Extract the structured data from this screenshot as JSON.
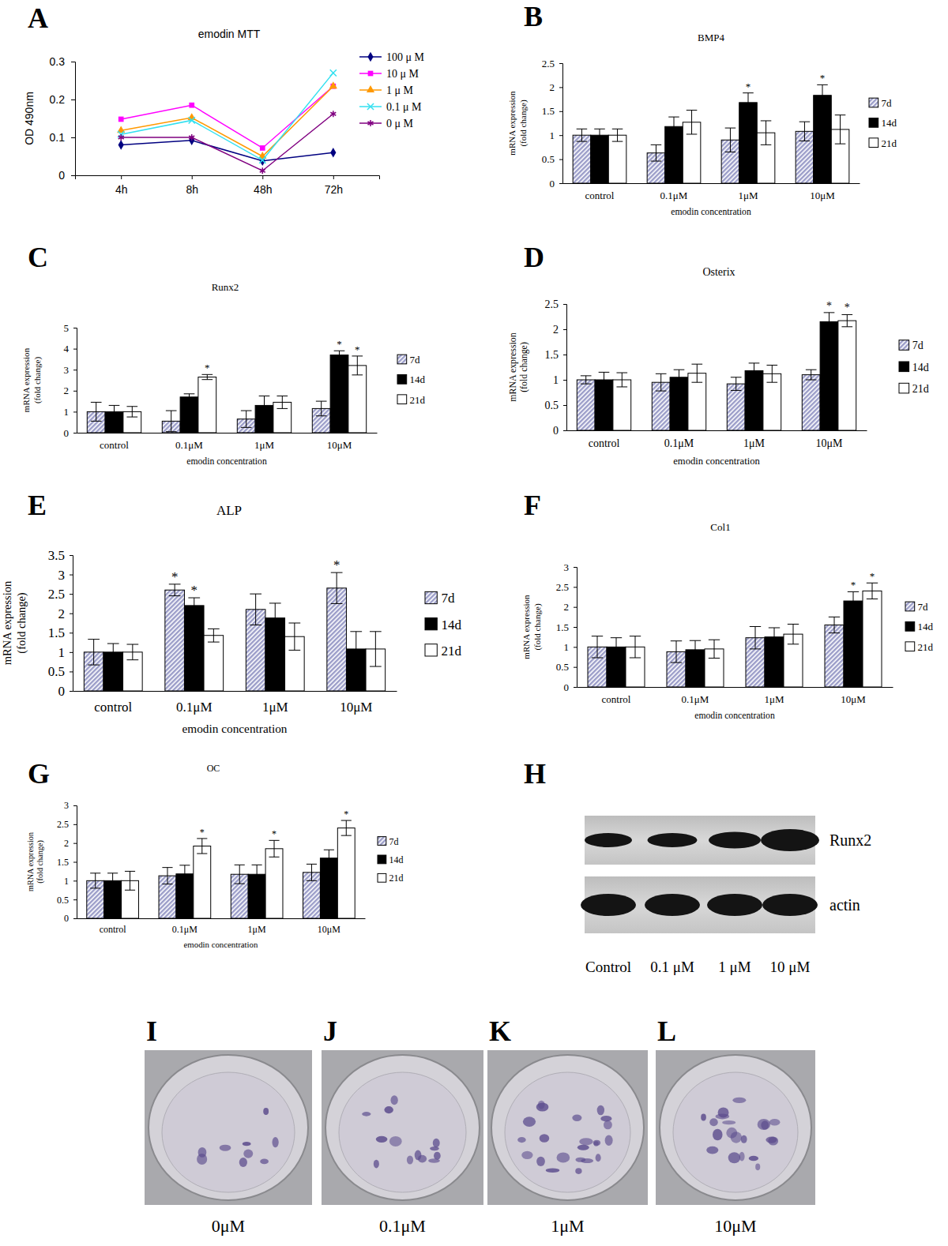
{
  "chart_data": [
    {
      "panel": "A",
      "type": "line",
      "title": "emodin MTT",
      "ylabel": "OD 490nm",
      "categories": [
        "4h",
        "8h",
        "48h",
        "72h"
      ],
      "ylim": [
        0,
        0.3
      ],
      "yticks": [
        0,
        0.1,
        0.2,
        0.3
      ],
      "legend": "top-right",
      "series": [
        {
          "name": "100 μ M",
          "color": "#000080",
          "marker": "diamond",
          "values": [
            0.08,
            0.092,
            0.038,
            0.06
          ]
        },
        {
          "name": "10 μ M",
          "color": "#ff00ff",
          "marker": "square",
          "values": [
            0.148,
            0.185,
            0.072,
            0.235
          ]
        },
        {
          "name": "1 μ M",
          "color": "#ff9900",
          "marker": "triangle",
          "values": [
            0.118,
            0.152,
            0.05,
            0.235
          ]
        },
        {
          "name": "0.1 μ M",
          "color": "#33e0f0",
          "marker": "x",
          "values": [
            0.108,
            0.145,
            0.04,
            0.27
          ]
        },
        {
          "name": "0 μ M",
          "color": "#800080",
          "marker": "asterisk",
          "values": [
            0.1,
            0.1,
            0.012,
            0.162
          ]
        }
      ]
    },
    {
      "panel": "B",
      "type": "bar",
      "title": "BMP4",
      "ylabel": [
        "mRNA expression",
        "(fold change)"
      ],
      "xlabel": "emodin concentration",
      "categories": [
        "control",
        "0.1μM",
        "1μM",
        "10μM"
      ],
      "ylim": [
        0,
        2.5
      ],
      "yticks": [
        0,
        0.5,
        1,
        1.5,
        2,
        2.5
      ],
      "legend": "right",
      "series": [
        {
          "name": "7d",
          "color": "#9a9cc8",
          "values": [
            1.0,
            0.63,
            0.9,
            1.08
          ],
          "errors": [
            0.13,
            0.17,
            0.25,
            0.2
          ]
        },
        {
          "name": "14d",
          "color": "#000000",
          "values": [
            1.0,
            1.18,
            1.68,
            1.83
          ],
          "errors": [
            0.13,
            0.2,
            0.2,
            0.22
          ]
        },
        {
          "name": "21d",
          "color": "#ffffff",
          "values": [
            1.0,
            1.27,
            1.05,
            1.12
          ],
          "errors": [
            0.13,
            0.25,
            0.25,
            0.3
          ]
        }
      ],
      "annotations": [
        {
          "text": "*",
          "series": 1,
          "category": 2
        },
        {
          "text": "*",
          "series": 1,
          "category": 3
        }
      ]
    },
    {
      "panel": "C",
      "type": "bar",
      "title": "Runx2",
      "ylabel": [
        "mRNA expression",
        "(fold change)"
      ],
      "xlabel": "emodin concentration",
      "categories": [
        "control",
        "0.1μM",
        "1μM",
        "10μM"
      ],
      "ylim": [
        0,
        5
      ],
      "yticks": [
        0,
        1,
        2,
        3,
        4,
        5
      ],
      "legend": "right",
      "series": [
        {
          "name": "7d",
          "color": "#9a9cc8",
          "values": [
            1.0,
            0.55,
            0.65,
            1.15
          ],
          "errors": [
            0.45,
            0.5,
            0.4,
            0.35
          ]
        },
        {
          "name": "14d",
          "color": "#000000",
          "values": [
            1.0,
            1.7,
            1.3,
            3.7
          ],
          "errors": [
            0.3,
            0.15,
            0.45,
            0.2
          ]
        },
        {
          "name": "21d",
          "color": "#ffffff",
          "values": [
            1.0,
            2.65,
            1.45,
            3.2
          ],
          "errors": [
            0.25,
            0.12,
            0.3,
            0.45
          ]
        }
      ],
      "annotations": [
        {
          "text": "*",
          "series": 2,
          "category": 1
        },
        {
          "text": "*",
          "series": 1,
          "category": 3
        },
        {
          "text": "*",
          "series": 2,
          "category": 3
        }
      ]
    },
    {
      "panel": "D",
      "type": "bar",
      "title": "Osterix",
      "ylabel": [
        "mRNA expression",
        "(fold change)"
      ],
      "xlabel": "emodin concentration",
      "categories": [
        "control",
        "0.1μM",
        "1μM",
        "10μM"
      ],
      "ylim": [
        0,
        2.5
      ],
      "yticks": [
        0,
        0.5,
        1,
        1.5,
        2,
        2.5
      ],
      "legend": "right",
      "series": [
        {
          "name": "7d",
          "color": "#9a9cc8",
          "values": [
            1.0,
            0.95,
            0.92,
            1.1
          ],
          "errors": [
            0.08,
            0.17,
            0.13,
            0.1
          ]
        },
        {
          "name": "14d",
          "color": "#000000",
          "values": [
            1.0,
            1.05,
            1.18,
            2.15
          ],
          "errors": [
            0.15,
            0.15,
            0.15,
            0.18
          ]
        },
        {
          "name": "21d",
          "color": "#ffffff",
          "values": [
            1.0,
            1.13,
            1.12,
            2.17
          ],
          "errors": [
            0.14,
            0.18,
            0.17,
            0.12
          ]
        }
      ],
      "annotations": [
        {
          "text": "*",
          "series": 1,
          "category": 3
        },
        {
          "text": "*",
          "series": 2,
          "category": 3
        }
      ]
    },
    {
      "panel": "E",
      "type": "bar",
      "title": "ALP",
      "ylabel": [
        "mRNA expression",
        "(fold change)"
      ],
      "xlabel": "emodin concentration",
      "categories": [
        "control",
        "0.1μM",
        "1μM",
        "10μM"
      ],
      "ylim": [
        0,
        3.5
      ],
      "yticks": [
        0,
        0.5,
        1,
        1.5,
        2,
        2.5,
        3,
        3.5
      ],
      "legend": "right",
      "series": [
        {
          "name": "7d",
          "color": "#9a9cc8",
          "values": [
            1.0,
            2.6,
            2.1,
            2.65
          ],
          "errors": [
            0.33,
            0.15,
            0.4,
            0.4
          ]
        },
        {
          "name": "14d",
          "color": "#000000",
          "values": [
            1.0,
            2.2,
            1.88,
            1.08
          ],
          "errors": [
            0.22,
            0.2,
            0.38,
            0.45
          ]
        },
        {
          "name": "21d",
          "color": "#ffffff",
          "values": [
            1.0,
            1.43,
            1.4,
            1.08
          ],
          "errors": [
            0.2,
            0.17,
            0.35,
            0.45
          ]
        }
      ],
      "annotations": [
        {
          "text": "*",
          "series": 0,
          "category": 1
        },
        {
          "text": "*",
          "series": 1,
          "category": 1
        },
        {
          "text": "*",
          "series": 0,
          "category": 3
        }
      ]
    },
    {
      "panel": "F",
      "type": "bar",
      "title": "Col1",
      "ylabel": [
        "mRNA expression",
        "(fold change)"
      ],
      "xlabel": "emodin concentration",
      "categories": [
        "control",
        "0.1μM",
        "1μM",
        "10μM"
      ],
      "ylim": [
        0,
        3
      ],
      "yticks": [
        0,
        0.5,
        1,
        1.5,
        2,
        2.5,
        3
      ],
      "legend": "right",
      "series": [
        {
          "name": "7d",
          "color": "#9a9cc8",
          "values": [
            1.0,
            0.88,
            1.23,
            1.55
          ],
          "errors": [
            0.27,
            0.27,
            0.28,
            0.2
          ]
        },
        {
          "name": "14d",
          "color": "#000000",
          "values": [
            1.0,
            0.93,
            1.25,
            2.15
          ],
          "errors": [
            0.23,
            0.23,
            0.23,
            0.23
          ]
        },
        {
          "name": "21d",
          "color": "#ffffff",
          "values": [
            1.0,
            0.95,
            1.32,
            2.4
          ],
          "errors": [
            0.27,
            0.23,
            0.25,
            0.2
          ]
        }
      ],
      "annotations": [
        {
          "text": "*",
          "series": 1,
          "category": 3
        },
        {
          "text": "*",
          "series": 2,
          "category": 3
        }
      ]
    },
    {
      "panel": "G",
      "type": "bar",
      "title": "OC",
      "ylabel": [
        "mRNA expression",
        "(fold change)"
      ],
      "xlabel": "emodin concentration",
      "categories": [
        "control",
        "0.1μM",
        "1μM",
        "10μM"
      ],
      "ylim": [
        0,
        3
      ],
      "yticks": [
        0,
        0.5,
        1,
        1.5,
        2,
        2.5,
        3
      ],
      "legend": "right",
      "series": [
        {
          "name": "7d",
          "color": "#9a9cc8",
          "values": [
            1.0,
            1.13,
            1.17,
            1.22
          ],
          "errors": [
            0.2,
            0.22,
            0.25,
            0.22
          ]
        },
        {
          "name": "14d",
          "color": "#000000",
          "values": [
            1.0,
            1.18,
            1.17,
            1.6
          ],
          "errors": [
            0.2,
            0.23,
            0.25,
            0.22
          ]
        },
        {
          "name": "21d",
          "color": "#ffffff",
          "values": [
            1.0,
            1.92,
            1.85,
            2.4
          ],
          "errors": [
            0.25,
            0.2,
            0.22,
            0.2
          ]
        }
      ],
      "annotations": [
        {
          "text": "*",
          "series": 2,
          "category": 1
        },
        {
          "text": "*",
          "series": 2,
          "category": 2
        },
        {
          "text": "*",
          "series": 2,
          "category": 3
        }
      ]
    }
  ],
  "blot": {
    "panel": "H",
    "rows": [
      "Runx2",
      "actin"
    ],
    "lanes": [
      "Control",
      "0.1 μM",
      "1 μM",
      "10 μM"
    ]
  },
  "dishes": {
    "panels": [
      "I",
      "J",
      "K",
      "L"
    ],
    "labels": [
      "0μM",
      "0.1μM",
      "1μM",
      "10μM"
    ]
  }
}
